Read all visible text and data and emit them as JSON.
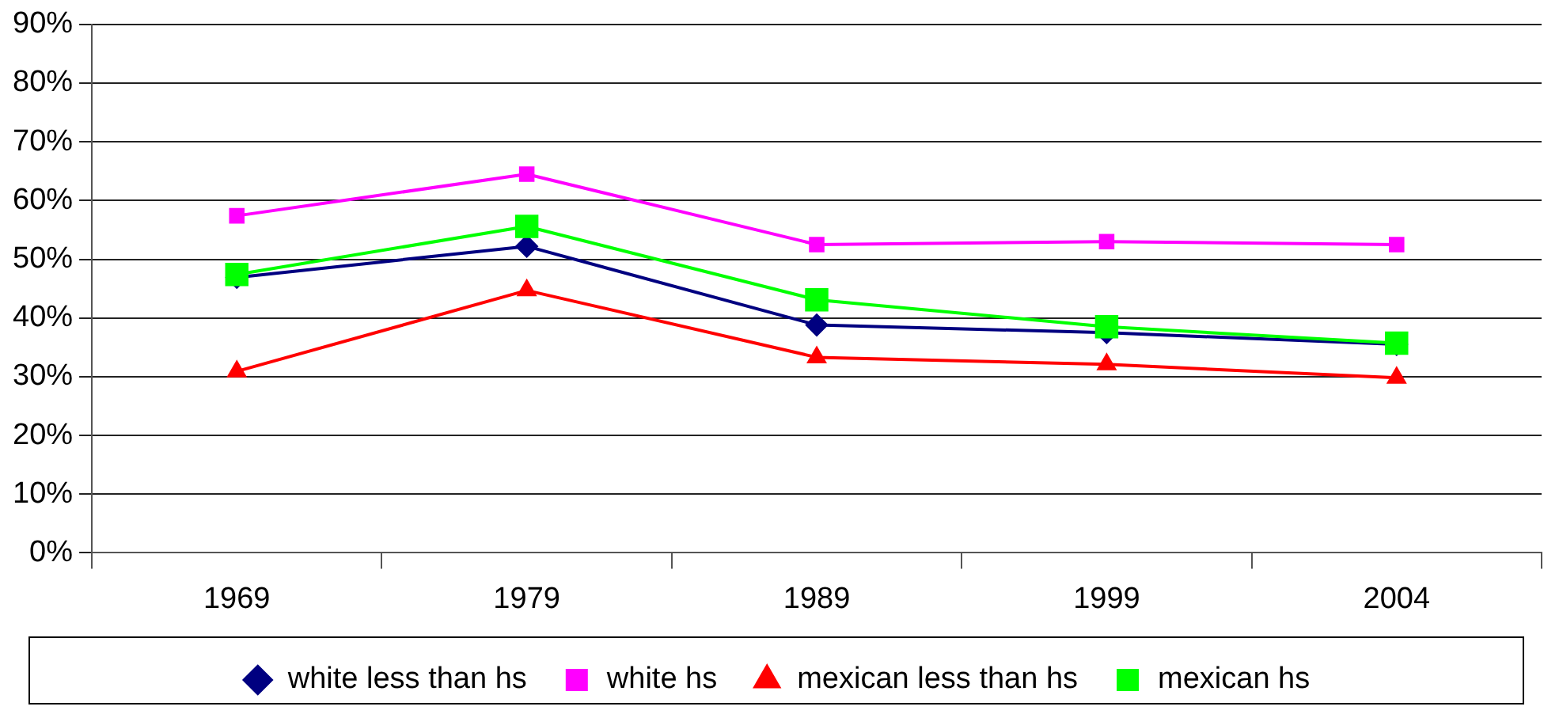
{
  "chart_data": {
    "type": "line",
    "categories": [
      "1969",
      "1979",
      "1989",
      "1999",
      "2004"
    ],
    "series": [
      {
        "name": "white less than hs",
        "color": "#000080",
        "marker": "diamond",
        "values": [
          46.9,
          52.2,
          38.8,
          37.5,
          35.5
        ]
      },
      {
        "name": "white hs",
        "color": "#ff00ff",
        "marker": "square",
        "values": [
          57.4,
          64.5,
          52.5,
          53.0,
          52.5
        ]
      },
      {
        "name": "mexican less than hs",
        "color": "#ff0000",
        "marker": "triangle",
        "values": [
          30.9,
          44.7,
          33.3,
          32.1,
          29.8
        ]
      },
      {
        "name": "mexican hs",
        "color": "#00ff00",
        "marker": "square",
        "values": [
          47.4,
          55.6,
          43.1,
          38.5,
          35.7
        ]
      }
    ],
    "ylim": [
      0,
      90
    ],
    "yticks": [
      {
        "value": 0,
        "label": "0%"
      },
      {
        "value": 10,
        "label": "10%"
      },
      {
        "value": 20,
        "label": "20%"
      },
      {
        "value": 30,
        "label": "30%"
      },
      {
        "value": 40,
        "label": "40%"
      },
      {
        "value": 50,
        "label": "50%"
      },
      {
        "value": 60,
        "label": "60%"
      },
      {
        "value": 70,
        "label": "70%"
      },
      {
        "value": 80,
        "label": "80%"
      },
      {
        "value": 90,
        "label": "90%"
      }
    ],
    "grid": "y",
    "legend": "bottom",
    "line_style": "solid"
  }
}
